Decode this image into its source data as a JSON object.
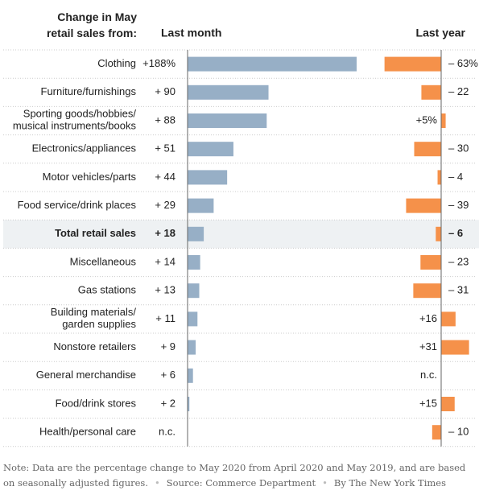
{
  "chart_data": {
    "type": "bar",
    "title": "Change in May\nretail sales from:",
    "categories": [
      "Clothing",
      "Furniture/furnishings",
      "Sporting goods/hobbies/\nmusical instruments/books",
      "Electronics/appliances",
      "Motor vehicles/parts",
      "Food service/drink places",
      "Total retail sales",
      "Miscellaneous",
      "Gas stations",
      "Building materials/\ngarden supplies",
      "Nonstore retailers",
      "General merchandise",
      "Food/drink stores",
      "Health/personal care"
    ],
    "series": [
      {
        "name": "Last month",
        "color": "#97afc6",
        "values": [
          188,
          90,
          88,
          51,
          44,
          29,
          18,
          14,
          13,
          11,
          9,
          6,
          2,
          null
        ],
        "value_labels": [
          "+188%",
          "+ 90",
          "+ 88",
          "+ 51",
          "+ 44",
          "+ 29",
          "+ 18",
          "+ 14",
          "+ 13",
          "+ 11",
          "+ 9",
          "+ 6",
          "+ 2",
          "n.c."
        ]
      },
      {
        "name": "Last year",
        "color": "#f5914a",
        "values": [
          -63,
          -22,
          5,
          -30,
          -4,
          -39,
          -6,
          -23,
          -31,
          16,
          31,
          null,
          15,
          -10
        ],
        "value_labels": [
          "– 63%",
          "– 22",
          "+5%",
          "– 30",
          "– 4",
          "– 39",
          "– 6",
          "– 23",
          "– 31",
          "+16",
          "+31",
          "n.c.",
          "+15",
          "– 10"
        ]
      }
    ],
    "note": "Note: Data are the percentage change to May 2020 from April 2020 and May 2019, and are based on seasonally adjusted figures.",
    "source": "Source: Commerce Department",
    "byline": "By The New York Times"
  }
}
